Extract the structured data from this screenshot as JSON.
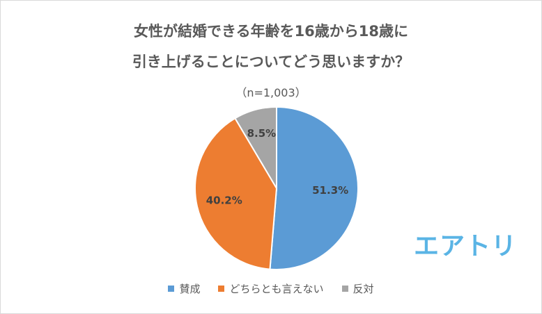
{
  "chart_data": {
    "type": "pie",
    "title_lines": [
      "女性が結婚できる年齢を16歳から18歳に",
      "引き上げることについてどう思いますか？"
    ],
    "subtitle": "（n=1,003）",
    "categories": [
      "賛成",
      "どちらとも言えない",
      "反対"
    ],
    "values": [
      51.3,
      40.2,
      8.5
    ],
    "labels": [
      "51.3%",
      "40.2%",
      "8.5%"
    ],
    "colors": [
      "#5b9bd5",
      "#ed7d31",
      "#a5a5a5"
    ],
    "start_angle": "12 o'clock",
    "direction": "clockwise",
    "legend_position": "bottom"
  },
  "logo": {
    "text": "エアトリ",
    "color": "#5ab4e5"
  }
}
